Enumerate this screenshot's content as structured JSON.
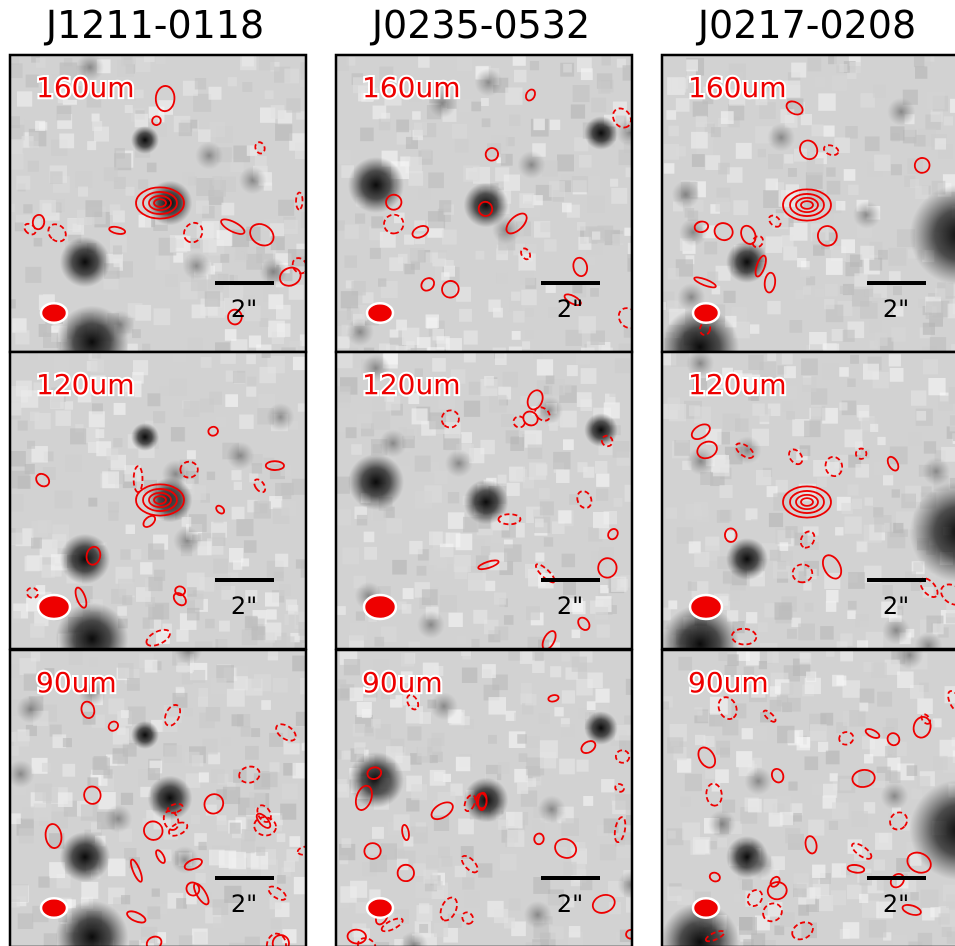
{
  "columns": [
    {
      "title": "J1211-0118",
      "panels": [
        {
          "label": "160um",
          "scale": "2\""
        },
        {
          "label": "120um",
          "scale": "2\""
        },
        {
          "label": "90um",
          "scale": "2\""
        }
      ]
    },
    {
      "title": "J0235-0532",
      "panels": [
        {
          "label": "160um",
          "scale": "2\""
        },
        {
          "label": "120um",
          "scale": "2\""
        },
        {
          "label": "90um",
          "scale": "2\""
        }
      ]
    },
    {
      "title": "J0217-0208",
      "panels": [
        {
          "label": "160um",
          "scale": "2\""
        },
        {
          "label": "120um",
          "scale": "2\""
        },
        {
          "label": "90um",
          "scale": "2\""
        }
      ]
    }
  ]
}
